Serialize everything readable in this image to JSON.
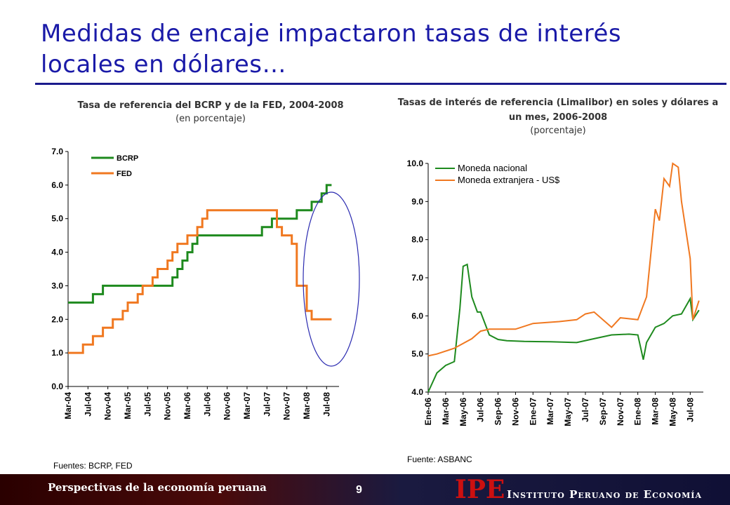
{
  "slide": {
    "title": "Medidas de encaje impactaron tasas de interés locales en dólares…",
    "footer_left": "Perspectivas de la economía peruana",
    "page_number": "9",
    "logo_abbr": "IPE",
    "logo_name": "Instituto Peruano de Economía",
    "colors": {
      "title": "#1a1aa8",
      "green": "#1e8a1e",
      "orange": "#f07820",
      "ellipse": "#2a2ab0",
      "logo_red": "#cc1010"
    }
  },
  "chart1": {
    "title": "Tasa de referencia del BCRP y de la FED, 2004-2008",
    "subtitle": "(en porcentaje)",
    "source": "Fuentes: BCRP, FED",
    "annotation": "ellipse highlighting 2007-2008 divergence"
  },
  "chart2": {
    "title": "Tasas de interés de referencia (Limalibor) en soles y dólares a un mes, 2006-2008",
    "subtitle": "(porcentaje)",
    "source": "Fuente: ASBANC"
  },
  "chart_data": [
    {
      "type": "line",
      "x_unit": "month",
      "x_ticks": [
        "Mar-04",
        "Jul-04",
        "Nov-04",
        "Mar-05",
        "Jul-05",
        "Nov-05",
        "Mar-06",
        "Jul-06",
        "Nov-06",
        "Mar-07",
        "Jul-07",
        "Nov-07",
        "Mar-08",
        "Jul-08"
      ],
      "ylim": [
        0,
        7
      ],
      "y_ticks": [
        "0.0",
        "1.0",
        "2.0",
        "3.0",
        "4.0",
        "5.0",
        "6.0",
        "7.0"
      ],
      "legend_position": "top-left",
      "series": [
        {
          "name": "BCRP",
          "color": "#1e8a1e",
          "step": true,
          "points": [
            [
              "2004-03",
              2.5
            ],
            [
              "2004-08",
              2.75
            ],
            [
              "2004-10",
              3.0
            ],
            [
              "2005-12",
              3.25
            ],
            [
              "2006-01",
              3.5
            ],
            [
              "2006-02",
              3.75
            ],
            [
              "2006-03",
              4.0
            ],
            [
              "2006-04",
              4.25
            ],
            [
              "2006-05",
              4.5
            ],
            [
              "2007-06",
              4.75
            ],
            [
              "2007-08",
              5.0
            ],
            [
              "2008-01",
              5.25
            ],
            [
              "2008-04",
              5.5
            ],
            [
              "2008-06",
              5.75
            ],
            [
              "2008-07",
              6.0
            ],
            [
              "2008-08",
              6.0
            ]
          ]
        },
        {
          "name": "FED",
          "color": "#f07820",
          "step": true,
          "points": [
            [
              "2004-03",
              1.0
            ],
            [
              "2004-06",
              1.25
            ],
            [
              "2004-08",
              1.5
            ],
            [
              "2004-10",
              1.75
            ],
            [
              "2004-12",
              2.0
            ],
            [
              "2005-02",
              2.25
            ],
            [
              "2005-03",
              2.5
            ],
            [
              "2005-05",
              2.75
            ],
            [
              "2005-06",
              3.0
            ],
            [
              "2005-08",
              3.25
            ],
            [
              "2005-09",
              3.5
            ],
            [
              "2005-11",
              3.75
            ],
            [
              "2005-12",
              4.0
            ],
            [
              "2006-01",
              4.25
            ],
            [
              "2006-03",
              4.5
            ],
            [
              "2006-05",
              4.75
            ],
            [
              "2006-06",
              5.0
            ],
            [
              "2006-07",
              5.25
            ],
            [
              "2007-09",
              4.75
            ],
            [
              "2007-10",
              4.5
            ],
            [
              "2007-12",
              4.25
            ],
            [
              "2008-01",
              3.0
            ],
            [
              "2008-03",
              2.25
            ],
            [
              "2008-04",
              2.0
            ],
            [
              "2008-08",
              2.0
            ]
          ]
        }
      ]
    },
    {
      "type": "line",
      "x_unit": "month",
      "x_ticks": [
        "Ene-06",
        "Mar-06",
        "May-06",
        "Jul-06",
        "Sep-06",
        "Nov-06",
        "Ene-07",
        "Mar-07",
        "May-07",
        "Jul-07",
        "Sep-07",
        "Nov-07",
        "Ene-08",
        "Mar-08",
        "May-08",
        "Jul-08"
      ],
      "ylim": [
        4,
        10
      ],
      "y_ticks": [
        "4.0",
        "5.0",
        "6.0",
        "7.0",
        "8.0",
        "9.0",
        "10.0"
      ],
      "legend_position": "top-left",
      "series": [
        {
          "name": "Moneda nacional",
          "color": "#1e8a1e",
          "points": [
            [
              "2006-01",
              4.0
            ],
            [
              "2006-02",
              4.5
            ],
            [
              "2006-03",
              4.7
            ],
            [
              "2006-04",
              4.8
            ],
            [
              "2006-04-20",
              6.2
            ],
            [
              "2006-05",
              7.3
            ],
            [
              "2006-05-15",
              7.35
            ],
            [
              "2006-06",
              6.5
            ],
            [
              "2006-06-20",
              6.1
            ],
            [
              "2006-07",
              6.1
            ],
            [
              "2006-08",
              5.5
            ],
            [
              "2006-09",
              5.38
            ],
            [
              "2006-10",
              5.35
            ],
            [
              "2006-12",
              5.33
            ],
            [
              "2007-03",
              5.32
            ],
            [
              "2007-06",
              5.3
            ],
            [
              "2007-08",
              5.4
            ],
            [
              "2007-10",
              5.5
            ],
            [
              "2007-12",
              5.52
            ],
            [
              "2008-01",
              5.5
            ],
            [
              "2008-01-20",
              4.85
            ],
            [
              "2008-02",
              5.3
            ],
            [
              "2008-03",
              5.7
            ],
            [
              "2008-04",
              5.8
            ],
            [
              "2008-05",
              6.0
            ],
            [
              "2008-06",
              6.05
            ],
            [
              "2008-07",
              6.45
            ],
            [
              "2008-07-10",
              5.9
            ],
            [
              "2008-08",
              6.15
            ]
          ]
        },
        {
          "name": "Moneda extranjera - US$",
          "color": "#f07820",
          "points": [
            [
              "2006-01",
              4.95
            ],
            [
              "2006-02",
              5.0
            ],
            [
              "2006-04",
              5.15
            ],
            [
              "2006-06",
              5.4
            ],
            [
              "2006-07",
              5.6
            ],
            [
              "2006-08",
              5.65
            ],
            [
              "2006-11",
              5.65
            ],
            [
              "2007-01",
              5.8
            ],
            [
              "2007-04",
              5.85
            ],
            [
              "2007-06",
              5.9
            ],
            [
              "2007-07",
              6.05
            ],
            [
              "2007-08",
              6.1
            ],
            [
              "2007-10",
              5.7
            ],
            [
              "2007-11",
              5.95
            ],
            [
              "2008-01",
              5.9
            ],
            [
              "2008-02",
              6.5
            ],
            [
              "2008-03",
              8.8
            ],
            [
              "2008-03-15",
              8.5
            ],
            [
              "2008-04",
              9.6
            ],
            [
              "2008-04-20",
              9.4
            ],
            [
              "2008-05",
              10.0
            ],
            [
              "2008-05-20",
              9.9
            ],
            [
              "2008-06",
              9.0
            ],
            [
              "2008-07",
              7.5
            ],
            [
              "2008-07-10",
              5.9
            ],
            [
              "2008-08",
              6.4
            ]
          ]
        }
      ]
    }
  ]
}
